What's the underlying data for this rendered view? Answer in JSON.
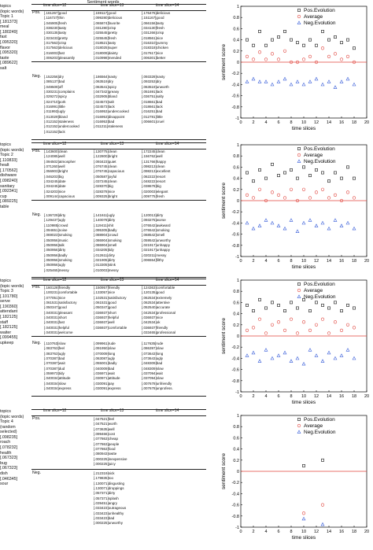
{
  "page_title": "Sentiment words",
  "legend": [
    "Pos.Evolution",
    "Average",
    "Neg.Evolution"
  ],
  "tables": [
    {
      "topic_header": "topics\n(topic words)",
      "topic_words": "Topic 1\n[.181373]\nmeal\n[.180249]\nfast\n[.095320]\nflavor\n[.095320]\ntaste\n[.089622]\nsalt",
      "col_headers": [
        "time slice=12",
        "time slice=13",
        "time slice=14"
      ],
      "pos_label": "Pos.",
      "neg_label": "Neg.",
      "pos_cols": [
        "[.161267]good\n[.116727]thin\n[.046905]fresh\n[.038230]tasty\n[.030135]tasty\n[.023433]pretty\n[.017563]crisp\n[.017563]delicious\n[.016003]fast\n[.006203]pleasantly",
        "[.159117]good\n[.099280]delicious\n[.065874]favorite\n[.031280]crisp\n[.025545]pretty\n[.025545]fresh\n[.018521]tasty\n[.018025]super\n[.018009]dainty\n[.010998]mended",
        "[.176476]delicious\n[.151167]good\n[.066156]tasty\n[.034130]fresh\n[.031266]crisp\n[.018561]nice\n[.016310]yummy\n[.018318]chicken\n[.017617]nice\n[.006301]better"
      ],
      "neg_cols": [
        "[.152256]dry\n[.085137]bad\n[.049509]off\n[.030231]complains\n[.029272]spicy\n[.024710]pork\n[.016991]little\n[.011992]ugly\n[.013029]bland\n[.012152]staleness\n[.012152]undercooked\n[.012152]lack",
        "[.186564]nasty\n[.063519]dry\n[.063541]spicy\n[.047342]greasy\n[.032905]bland\n[.024573]salt\n[.024573]lack\n[.016953]undercooked\n[.016953]disappoint\n[.016953]bad\n[.011211]staleness",
        "[.093328]nasty\n[.093253]dry\n[.063519]unworth\n[.051691]lack\n[.036751]salty\n[.018661]bad\n[.018661]lack\n[.016251]bad\n[.012781]little\n[.006601]cruel"
      ]
    },
    {
      "topic_header": "topics\n(topic words)",
      "topic_words": "Topic 2\n[.110833]\nhealt\n[.170562]\ndishware\n[.098240]\nsanitary\n[.092341]\ncup\n[.089225]\ntable",
      "col_headers": [
        "time slice=12",
        "time slice=13",
        "time slice=14"
      ],
      "pos_label": "Pos.",
      "neg_label": "Neg.",
      "pos_cols": [
        "[.143600]clean\n[.124085]well\n[.094502]atmospher\n[.071260]well\n[.056903]bright\n[.046203]big\n[.034245]date\n[.034245]date\n[.024203]nice\n[.009144]capacious",
        "[.130775]clean\n[.122800]bright\n[.093423]quiet\n[.076745]clean\n[.076745]capacious\n[.050587]joyful\n[.037245]clean\n[.028370]big\n[.028378]nice\n[.009325]bright",
        "[.172245]clean\n[.156762]well\n[.131766]happy\n[.098213]clean\n[.098213]excellent\n[.062222]resort\n[.048222]resort\n[.038678]big\n[.020003]elegant\n[.009775]fresh"
      ],
      "neg_cols": [
        "[.136729]dirty\n[.129437]ugly\n[.110985]crowd\n[.094651]noise\n[.069023]smoking\n[.050956]music\n[.050956]talk\n[.050956]dirty\n[.050956]badly\n[.050956]smoking\n[.050956]ugly\n[.025465]messy",
        "[.141611]ugly\n[.140078]dirty\n[.119411]shit\n[.095305]badly\n[.088904]crowd\n[.086904]smoking\n[.086904]smell\n[.034205]tidy\n[.012611]dirty\n[.021905]dirty\n[.013305]stink\n[.010003]messy",
        "[.120013]dirty\n[.093275]worse\n[.076542]awkward\n[.076542]smoking\n[.068542]smell\n[.059542]unworthy\n[.021917]unhappy\n[.021917]unhappy\n[.020211]messy\n[.006554]filthy"
      ]
    },
    {
      "topic_header": "topics\n(topic words)",
      "topic_words": "Topic 3\n[.101780]\nserve\n[.190360]\nattendant\n[.182125]\nstaff\n[.182125]\nwaiter\n[.099455]\nupkeep",
      "col_headers": [
        "time slice=12",
        "time slice=13",
        "time slice=14"
      ],
      "pos_label": "Pos.",
      "neg_label": "Neg.",
      "pos_cols": [
        "[.160128]friendly\n[.100231]comfortable\n[.077051]nice\n[.061531]satisfactory\n[.050347]good\n[.040031]pleasant\n[.040031]short\n[.040031]fast\n[.040031]helpful\n[.040031]welcome",
        "[.150957]friendly\n[.133057]nice\n[.102531]satisfactory\n[.061531]good\n[.050347]good\n[.036937]short\n[.036937]helpful\n[.036937]well\n[.036937]comfortable",
        "[.124363]comfortable\n[.120135]good\n[.062534]extremely\n[.062534]attentive\n[.052540]accurate\n[.042534]professional\n[.036937]nice\n[.042534]ok\n[.036937]friendly\n[.033465]professional"
      ],
      "neg_cols": [
        "[.110763]slow\n[.083763]feel\n[.083763]ugly\n[.070387]bad\n[.070387]wait\n[.070387]dud\n[.059973]tidy\n[.040034]attitude\n[.040034]slow\n[.040034]express",
        "[.099961]rude\n[.091950]slow\n[.070009]long\n[.063087]ugly\n[.055001]badly\n[.040009]bad\n[.036971]wait\n[.030971]attitude\n[.030091]pay\n[.030091]express",
        "[.117635]rude\n[.086397]slow\n[.073643]long\n[.073643]ugly\n[.048309]bad\n[.048309]slow\n[.037094]wait\n[.037094]slow\n[.007678]unfriendly\n[.007678]unprofess."
      ]
    },
    {
      "topic_header": "topics\n(topic words)",
      "topic_words": "Topic 4\n(random\nselected)\n[.098235]\nroach\n[.078232]\nhealth\n[.067323]\nbug\n[.067323]\ndish\n[.046345]\nsour",
      "col_headers": [
        "time slice=12",
        "time slice=13",
        "time slice=14"
      ],
      "pos_label": "Pos.",
      "neg_label": "Neg.",
      "pos_cols": [
        "",
        "[.047521]feel\n[.047521]worth\n[.073635]well\n[.099466]cost\n[.077863]cheap\n[.077863]people\n[.077863]food\n[.080943]swtte\n[.000225]inexpensive\n[.000225]juicy",
        ""
      ],
      "neg_cols": [
        "",
        "[.212319]sick\n[.179835]too\n[.130071]disgusting\n[.130071]droppings\n[.057371]dirty\n[.057371]splash\n[.039451]angry\n[.033423]outrageous\n[.033423]unhealthy\n[.033423]bad\n[.000225]unworthy",
        ""
      ]
    }
  ],
  "chart_data": [
    {
      "type": "scatter",
      "xlabel": "time slices",
      "ylabel": "sentiment score",
      "xlim": [
        0,
        20
      ],
      "ylim": [
        -1,
        1
      ],
      "xticks": [
        0,
        2,
        4,
        6,
        8,
        10,
        12,
        14,
        16,
        18,
        20
      ],
      "yticks": [
        -1,
        -0.8,
        -0.6,
        -0.4,
        -0.2,
        0,
        0.2,
        0.4,
        0.6,
        0.8,
        1
      ],
      "legend_position": "top-right",
      "series": [
        {
          "name": "Pos.Evolution",
          "x": [
            1,
            2,
            3,
            4,
            5,
            6,
            7,
            8,
            9,
            10,
            11,
            12,
            13,
            14,
            15,
            16,
            17,
            18
          ],
          "values": [
            0.4,
            0.3,
            0.55,
            0.3,
            0.4,
            0.45,
            0.55,
            0.4,
            0.35,
            0.3,
            0.4,
            0.3,
            0.55,
            0.4,
            0.45,
            0.35,
            0.4,
            0.25
          ]
        },
        {
          "name": "Average",
          "x": [
            1,
            2,
            3,
            4,
            5,
            6,
            7,
            8,
            9,
            10,
            11,
            12,
            13,
            14,
            15,
            16,
            17,
            18
          ],
          "values": [
            0.1,
            0.05,
            0.18,
            0.05,
            0.15,
            0.05,
            0.2,
            0.0,
            0.0,
            0.05,
            0.1,
            0.0,
            0.25,
            0.1,
            0.15,
            0.05,
            0.1,
            0.0
          ]
        },
        {
          "name": "Neg.Evolution",
          "x": [
            1,
            2,
            3,
            4,
            5,
            6,
            7,
            8,
            9,
            10,
            11,
            12,
            13,
            14,
            15,
            16,
            17,
            18
          ],
          "values": [
            -0.35,
            -0.3,
            -0.35,
            -0.35,
            -0.4,
            -0.35,
            -0.3,
            -0.4,
            -0.35,
            -0.4,
            -0.35,
            -0.3,
            -0.4,
            -0.35,
            -0.45,
            -0.35,
            -0.3,
            -0.4
          ]
        }
      ],
      "reference_line": 0
    },
    {
      "type": "scatter",
      "xlabel": "time slices",
      "ylabel": "sentiment score",
      "xlim": [
        0,
        20
      ],
      "ylim": [
        -1,
        1
      ],
      "xticks": [
        0,
        2,
        4,
        6,
        8,
        10,
        12,
        14,
        16,
        18,
        20
      ],
      "yticks": [
        -1,
        -0.8,
        -0.6,
        -0.4,
        -0.2,
        0,
        0.2,
        0.4,
        0.6,
        0.8,
        1
      ],
      "legend_position": "top-right",
      "series": [
        {
          "name": "Pos.Evolution",
          "x": [
            1,
            2,
            3,
            4,
            5,
            6,
            7,
            8,
            9,
            10,
            11,
            12,
            13,
            14,
            15,
            16,
            17,
            18
          ],
          "values": [
            0.5,
            0.35,
            0.55,
            0.4,
            0.65,
            0.45,
            0.5,
            0.55,
            0.4,
            0.6,
            0.45,
            0.55,
            0.5,
            0.35,
            0.5,
            0.4,
            0.6,
            0.4
          ]
        },
        {
          "name": "Average",
          "x": [
            1,
            2,
            3,
            4,
            5,
            6,
            7,
            8,
            9,
            10,
            11,
            12,
            13,
            14,
            15,
            16,
            17,
            18
          ],
          "values": [
            0.1,
            0.05,
            0.2,
            0.0,
            0.15,
            0.1,
            0.05,
            0.2,
            0.0,
            0.2,
            0.05,
            0.15,
            0.2,
            0.05,
            0.1,
            0.0,
            0.15,
            0.05
          ]
        },
        {
          "name": "Neg.Evolution",
          "x": [
            1,
            2,
            3,
            4,
            5,
            6,
            7,
            8,
            9,
            10,
            11,
            12,
            13,
            14,
            15,
            16,
            17,
            18
          ],
          "values": [
            -0.4,
            -0.5,
            -0.45,
            -0.35,
            -0.4,
            -0.45,
            -0.5,
            -0.35,
            -0.55,
            -0.4,
            -0.35,
            -0.45,
            -0.4,
            -0.5,
            -0.35,
            -0.45,
            -0.4,
            -0.5
          ]
        }
      ],
      "reference_line": 0
    },
    {
      "type": "scatter",
      "xlabel": "time slices",
      "ylabel": "sentiment score",
      "xlim": [
        0,
        20
      ],
      "ylim": [
        -1,
        1
      ],
      "xticks": [
        0,
        2,
        4,
        6,
        8,
        10,
        12,
        14,
        16,
        18,
        20
      ],
      "yticks": [
        -1,
        -0.8,
        -0.6,
        -0.4,
        -0.2,
        0,
        0.2,
        0.4,
        0.6,
        0.8,
        1
      ],
      "legend_position": "top-right",
      "series": [
        {
          "name": "Pos.Evolution",
          "x": [
            1,
            2,
            3,
            4,
            5,
            6,
            7,
            8,
            9,
            10,
            11,
            12,
            13,
            14,
            15,
            16,
            17,
            18
          ],
          "values": [
            0.55,
            0.45,
            0.65,
            0.5,
            0.6,
            0.55,
            0.45,
            0.6,
            0.5,
            0.65,
            0.45,
            0.6,
            0.55,
            0.5,
            0.6,
            0.45,
            0.55,
            0.5
          ]
        },
        {
          "name": "Average",
          "x": [
            1,
            2,
            3,
            4,
            5,
            6,
            7,
            8,
            9,
            10,
            11,
            12,
            13,
            14,
            15,
            16,
            17,
            18
          ],
          "values": [
            0.1,
            0.15,
            0.3,
            0.05,
            0.2,
            0.25,
            0.1,
            0.3,
            0.05,
            0.25,
            0.1,
            0.2,
            0.3,
            0.05,
            0.25,
            0.1,
            0.2,
            0.15
          ]
        },
        {
          "name": "Neg.Evolution",
          "x": [
            1,
            2,
            3,
            4,
            5,
            6,
            7,
            8,
            9,
            10,
            11,
            12,
            13,
            14,
            15,
            16,
            17,
            18
          ],
          "values": [
            -0.35,
            -0.3,
            -0.45,
            -0.25,
            -0.4,
            -0.35,
            -0.3,
            -0.45,
            -0.4,
            -0.5,
            -0.25,
            -0.35,
            -0.45,
            -0.3,
            -0.4,
            -0.35,
            -0.25,
            -0.4
          ]
        }
      ],
      "reference_line": 0
    },
    {
      "type": "scatter",
      "xlabel": "time slices",
      "ylabel": "sentiment score",
      "xlim": [
        0,
        20
      ],
      "ylim": [
        -1,
        1
      ],
      "xticks": [
        0,
        2,
        4,
        6,
        8,
        10,
        12,
        14,
        16,
        18,
        20
      ],
      "yticks": [
        -1,
        -0.8,
        -0.6,
        -0.4,
        -0.2,
        0,
        0.2,
        0.4,
        0.6,
        0.8,
        1
      ],
      "legend_position": "top-right",
      "series": [
        {
          "name": "Pos.Evolution",
          "x": [
            10,
            13
          ],
          "values": [
            0.1,
            0.2
          ]
        },
        {
          "name": "Average",
          "x": [
            10,
            13
          ],
          "values": [
            -0.75,
            -0.6
          ]
        },
        {
          "name": "Neg.Evolution",
          "x": [
            10,
            13
          ],
          "values": [
            -0.85,
            -0.95
          ]
        }
      ],
      "reference_line": 0
    }
  ]
}
